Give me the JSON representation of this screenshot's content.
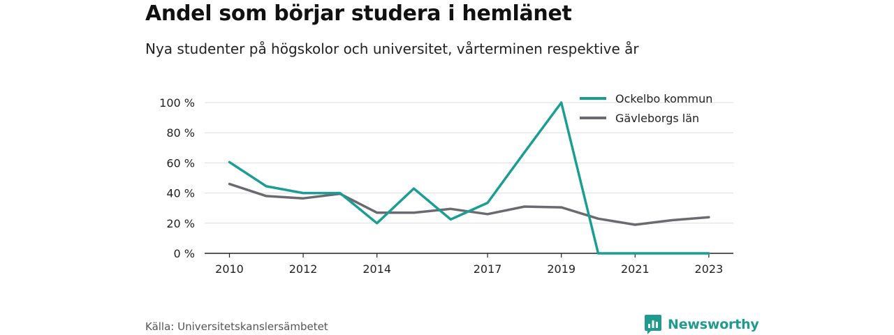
{
  "chart_data": {
    "type": "line",
    "title": "Andel som börjar studera i hemlänet",
    "subtitle": "Nya studenter på högskolor och universitet, vårterminen respektive år",
    "x": [
      2010,
      2011,
      2012,
      2013,
      2014,
      2015,
      2016,
      2017,
      2018,
      2019,
      2020,
      2021,
      2022,
      2023
    ],
    "x_ticks": [
      "2010",
      "2012",
      "2014",
      "2017",
      "2019",
      "2021",
      "2023"
    ],
    "y_ticks": [
      "0 %",
      "20 %",
      "40 %",
      "60 %",
      "80 %",
      "100 %"
    ],
    "ylim": [
      0,
      100
    ],
    "grid": true,
    "legend_position": "top-right",
    "series": [
      {
        "name": "Ockelbo kommun",
        "color": "#1a9e93",
        "values": [
          60.5,
          44.5,
          40,
          40,
          20,
          43,
          22.5,
          33.5,
          67,
          100,
          0,
          0,
          0,
          0
        ]
      },
      {
        "name": "Gävleborgs län",
        "color": "#6b6a70",
        "values": [
          46,
          38,
          36.5,
          39.5,
          27,
          27,
          29.5,
          26,
          31,
          30.5,
          23,
          19,
          22,
          24
        ]
      }
    ]
  },
  "footer": {
    "source": "Källa: Universitetskanslersämbetet",
    "brand_name": "Newsworthy",
    "brand_icon": "bar-chart-logo-icon",
    "brand_color": "#1f9b8e"
  }
}
